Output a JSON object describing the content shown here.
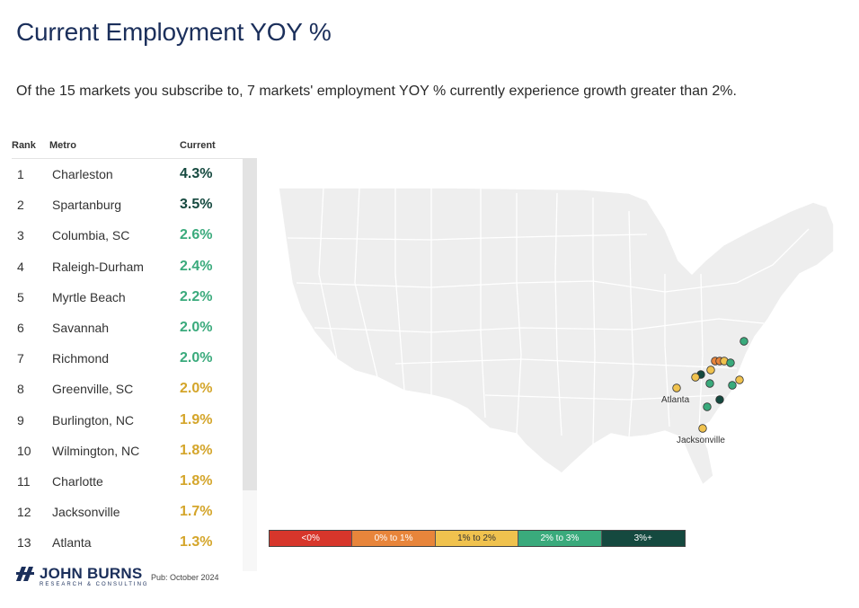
{
  "title": "Current Employment YOY %",
  "subtitle": "Of the 15 markets you subscribe to, 7 markets' employment YOY % currently experience growth greater than 2%.",
  "colors": {
    "lt0": "#d7362b",
    "c0to1": "#e8853b",
    "c1to2": "#f0c24e",
    "c2to3": "#3aaa7c",
    "c3plus": "#15493f",
    "state_fill": "#eeeeee",
    "state_border": "#ffffff"
  },
  "table": {
    "headers": {
      "rank": "Rank",
      "metro": "Metro",
      "current": "Current"
    },
    "rows": [
      {
        "rank": "1",
        "metro": "Charleston",
        "current": "4.3%",
        "bucket": "c3plus"
      },
      {
        "rank": "2",
        "metro": "Spartanburg",
        "current": "3.5%",
        "bucket": "c3plus"
      },
      {
        "rank": "3",
        "metro": "Columbia, SC",
        "current": "2.6%",
        "bucket": "c2to3"
      },
      {
        "rank": "4",
        "metro": "Raleigh-Durham",
        "current": "2.4%",
        "bucket": "c2to3"
      },
      {
        "rank": "5",
        "metro": "Myrtle Beach",
        "current": "2.2%",
        "bucket": "c2to3"
      },
      {
        "rank": "6",
        "metro": "Savannah",
        "current": "2.0%",
        "bucket": "c2to3"
      },
      {
        "rank": "7",
        "metro": "Richmond",
        "current": "2.0%",
        "bucket": "c2to3"
      },
      {
        "rank": "8",
        "metro": "Greenville, SC",
        "current": "2.0%",
        "bucket": "c1to2"
      },
      {
        "rank": "9",
        "metro": "Burlington, NC",
        "current": "1.9%",
        "bucket": "c1to2"
      },
      {
        "rank": "10",
        "metro": "Wilmington, NC",
        "current": "1.8%",
        "bucket": "c1to2"
      },
      {
        "rank": "11",
        "metro": "Charlotte",
        "current": "1.8%",
        "bucket": "c1to2"
      },
      {
        "rank": "12",
        "metro": "Jacksonville",
        "current": "1.7%",
        "bucket": "c1to2"
      },
      {
        "rank": "13",
        "metro": "Atlanta",
        "current": "1.3%",
        "bucket": "c1to2"
      }
    ]
  },
  "map": {
    "labels": {
      "atlanta": "Atlanta",
      "jacksonville": "Jacksonville"
    }
  },
  "legend": {
    "items": [
      {
        "label": "<0%",
        "bucket": "lt0"
      },
      {
        "label": "0% to 1%",
        "bucket": "c0to1"
      },
      {
        "label": "1% to 2%",
        "bucket": "c1to2"
      },
      {
        "label": "2% to 3%",
        "bucket": "c2to3"
      },
      {
        "label": "3%+",
        "bucket": "c3plus"
      }
    ]
  },
  "footer": {
    "logo_main": "JOHN BURNS",
    "logo_sub": "RESEARCH & CONSULTING",
    "pub": "Pub: October 2024"
  }
}
